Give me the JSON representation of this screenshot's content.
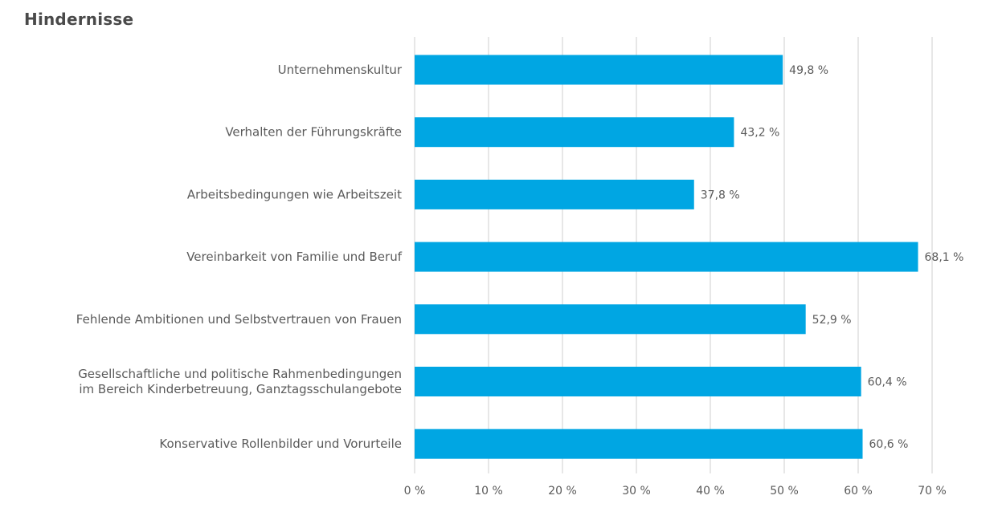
{
  "chart_data": {
    "type": "bar",
    "orientation": "horizontal",
    "title": "Hindernisse",
    "categories": [
      [
        "Unternehmenskultur"
      ],
      [
        "Verhalten der Führungskräfte"
      ],
      [
        "Arbeitsbedingungen wie Arbeitszeit"
      ],
      [
        "Vereinbarkeit von Familie und Beruf"
      ],
      [
        "Fehlende Ambitionen und Selbstvertrauen von Frauen"
      ],
      [
        "Gesellschaftliche und politische Rahmenbedingungen",
        "im Bereich Kinderbetreuung, Ganztagsschulangebote"
      ],
      [
        "Konservative Rollenbilder und Vorurteile"
      ]
    ],
    "values": [
      49.8,
      43.2,
      37.8,
      68.1,
      52.9,
      60.4,
      60.6
    ],
    "data_labels": [
      "49,8 %",
      "43,2 %",
      "37,8 %",
      "68,1 %",
      "52,9 %",
      "60,4 %",
      "60,6 %"
    ],
    "xlim": [
      0,
      70
    ],
    "xticks": [
      0,
      10,
      20,
      30,
      40,
      50,
      60,
      70
    ],
    "xtick_labels": [
      "0 %",
      "10 %",
      "20 %",
      "30 %",
      "40 %",
      "50 %",
      "60 %",
      "70 %"
    ],
    "xlabel": "",
    "ylabel": "",
    "grid": true,
    "legend": false,
    "colors": {
      "bar": "#00a6e3",
      "grid": "#cfcfcf",
      "text": "#5a5a5a"
    }
  }
}
